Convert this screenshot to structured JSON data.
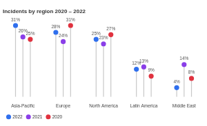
{
  "chart_data": {
    "type": "lollipop",
    "title": "Incidents by region 2020 – 2022",
    "categories": [
      "Asia-Pacific",
      "Europe",
      "North America",
      "Latin America",
      "Middle East"
    ],
    "series": [
      {
        "name": "2022",
        "color": "#2f6fed",
        "values": [
          31,
          28,
          25,
          12,
          4
        ],
        "value_labels": [
          "31%",
          "28%",
          "25%",
          "12%",
          "4%"
        ]
      },
      {
        "name": "2021",
        "color": "#8a3ee8",
        "values": [
          26,
          24,
          23,
          13,
          14
        ],
        "value_labels": [
          "26%",
          "24%",
          "23%",
          "13%",
          "14%"
        ]
      },
      {
        "name": "2020",
        "color": "#e0323f",
        "values": [
          25,
          31,
          27,
          9,
          8
        ],
        "value_labels": [
          "25%",
          "31%",
          "27%",
          "9%",
          "8%"
        ]
      }
    ],
    "data_labels": true,
    "tick_labels": "x",
    "grid": false,
    "legend": "bottom"
  }
}
